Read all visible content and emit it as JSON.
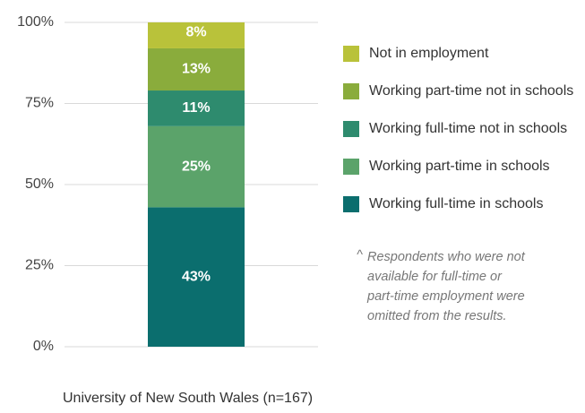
{
  "chart_data": {
    "type": "stacked_bar",
    "categories": [
      "University of New South Wales (n=167)"
    ],
    "series": [
      {
        "name": "Working full-time in schools",
        "color": "#0b6e6e",
        "values": [
          43
        ],
        "value_labels": [
          "43%"
        ]
      },
      {
        "name": "Working part-time in schools",
        "color": "#5ba36a",
        "values": [
          25
        ],
        "value_labels": [
          "25%"
        ]
      },
      {
        "name": "Working full-time not in schools",
        "color": "#2e8b6e",
        "values": [
          11
        ],
        "value_labels": [
          "11%"
        ]
      },
      {
        "name": "Working part-time not in schools",
        "color": "#8aac3c",
        "values": [
          13
        ],
        "value_labels": [
          "13%"
        ]
      },
      {
        "name": "Not in employment",
        "color": "#b9c23a",
        "values": [
          8
        ],
        "value_labels": [
          "8%"
        ]
      }
    ],
    "ylim": [
      0,
      100
    ],
    "yticks": [
      {
        "value": 0,
        "label": "0%"
      },
      {
        "value": 25,
        "label": "25%"
      },
      {
        "value": 50,
        "label": "50%"
      },
      {
        "value": 75,
        "label": "75%"
      },
      {
        "value": 100,
        "label": "100%"
      }
    ],
    "grid": true,
    "legend": "right",
    "note_marker": "^",
    "note": [
      "Respondents who were not",
      "available for full-time or",
      "part-time employment were",
      "omitted from the results."
    ]
  }
}
